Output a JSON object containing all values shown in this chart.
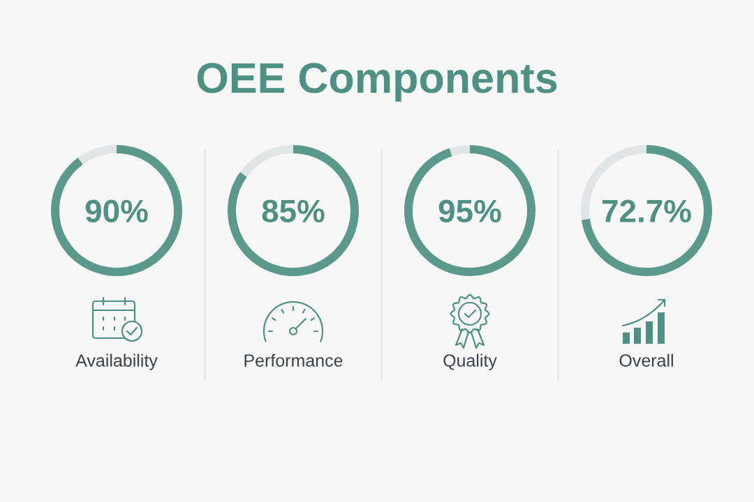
{
  "chart_data": [
    {
      "type": "donut",
      "title": "OEE Components",
      "categories": [
        null,
        null
      ],
      "values": [
        90,
        10
      ],
      "colors": [
        "#5b998d",
        "#e2e5e5"
      ],
      "value_labels": [
        "90%",
        null
      ],
      "xlabel": "Availability"
    },
    {
      "type": "donut",
      "categories": [
        null,
        null
      ],
      "values": [
        85,
        15
      ],
      "colors": [
        "#5b998d",
        "#e2e5e5"
      ],
      "value_labels": [
        "85%",
        null
      ],
      "xlabel": "Performance"
    },
    {
      "type": "donut",
      "categories": [
        null,
        null
      ],
      "values": [
        95,
        5
      ],
      "colors": [
        "#5b998d",
        "#e2e5e5"
      ],
      "value_labels": [
        "95%",
        null
      ],
      "xlabel": "Quality"
    },
    {
      "type": "donut",
      "categories": [
        null,
        null
      ],
      "values": [
        72.7,
        27.3
      ],
      "colors": [
        "#5b998d",
        "#e2e5e5"
      ],
      "value_labels": [
        "72.7%",
        null
      ],
      "xlabel": "Overall"
    }
  ]
}
